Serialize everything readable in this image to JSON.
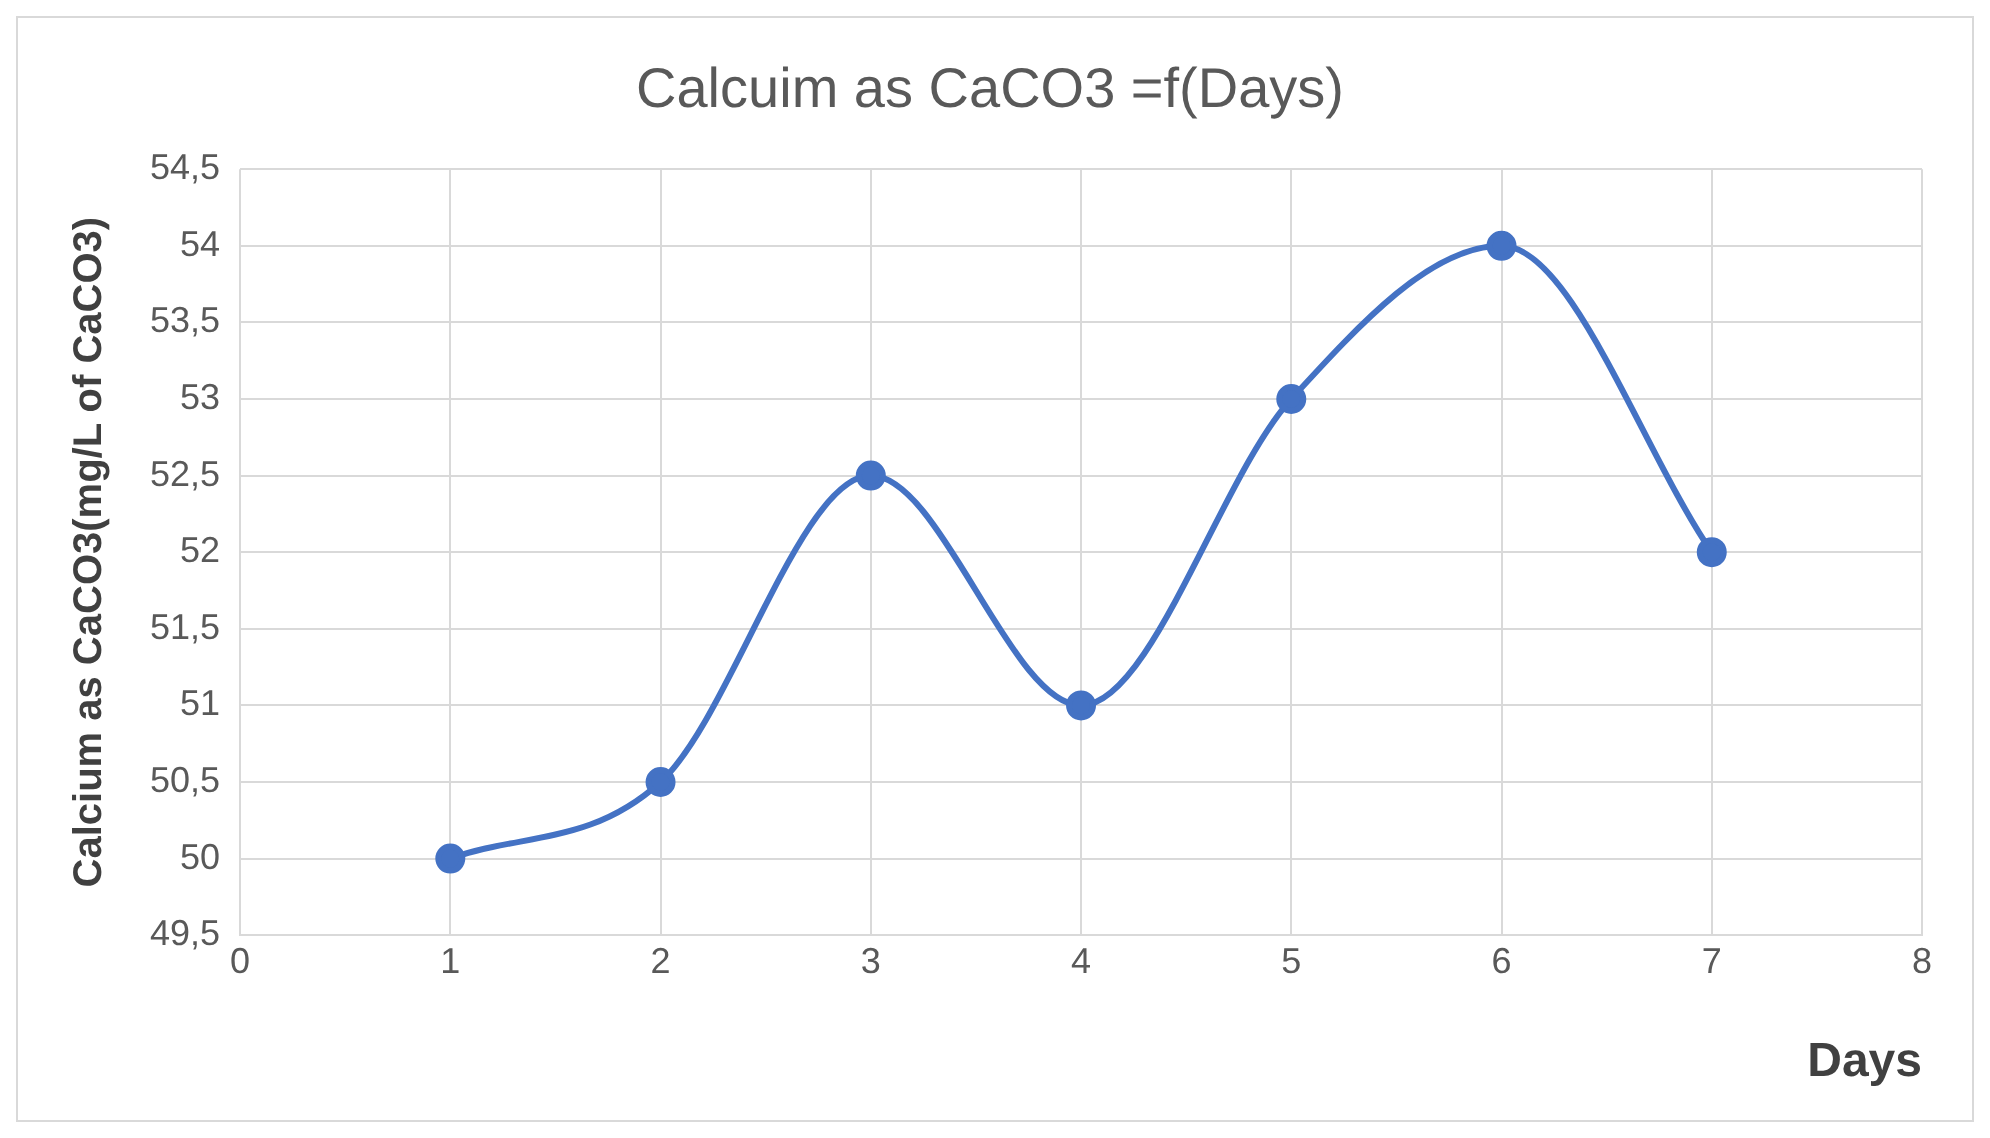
{
  "chart_data": {
    "type": "line",
    "title": "Calcuim as CaCO3 =f(Days)",
    "xlabel": "Days",
    "ylabel": "Calcium as CaCO3(mg/L of CaCO3)",
    "x": [
      1,
      2,
      3,
      4,
      5,
      6,
      7
    ],
    "series": [
      {
        "color": "#4472c4",
        "values": [
          50,
          50.5,
          52.5,
          51,
          53,
          54,
          52
        ]
      }
    ],
    "xlim": [
      0,
      8
    ],
    "xticks": [
      0,
      1,
      2,
      3,
      4,
      5,
      6,
      7,
      8
    ],
    "ylim": [
      49.5,
      54.5
    ],
    "yticks": [
      {
        "value": 49.5,
        "label": "49,5"
      },
      50,
      {
        "value": 50.5,
        "label": "50,5"
      },
      51,
      {
        "value": 51.5,
        "label": "51,5"
      },
      52,
      {
        "value": 52.5,
        "label": "52,5"
      },
      53,
      {
        "value": 53.5,
        "label": "53,5"
      },
      54,
      {
        "value": 54.5,
        "label": "54,5"
      }
    ],
    "grid": true,
    "legend": false,
    "marker": "circle",
    "line_style": "solid"
  }
}
